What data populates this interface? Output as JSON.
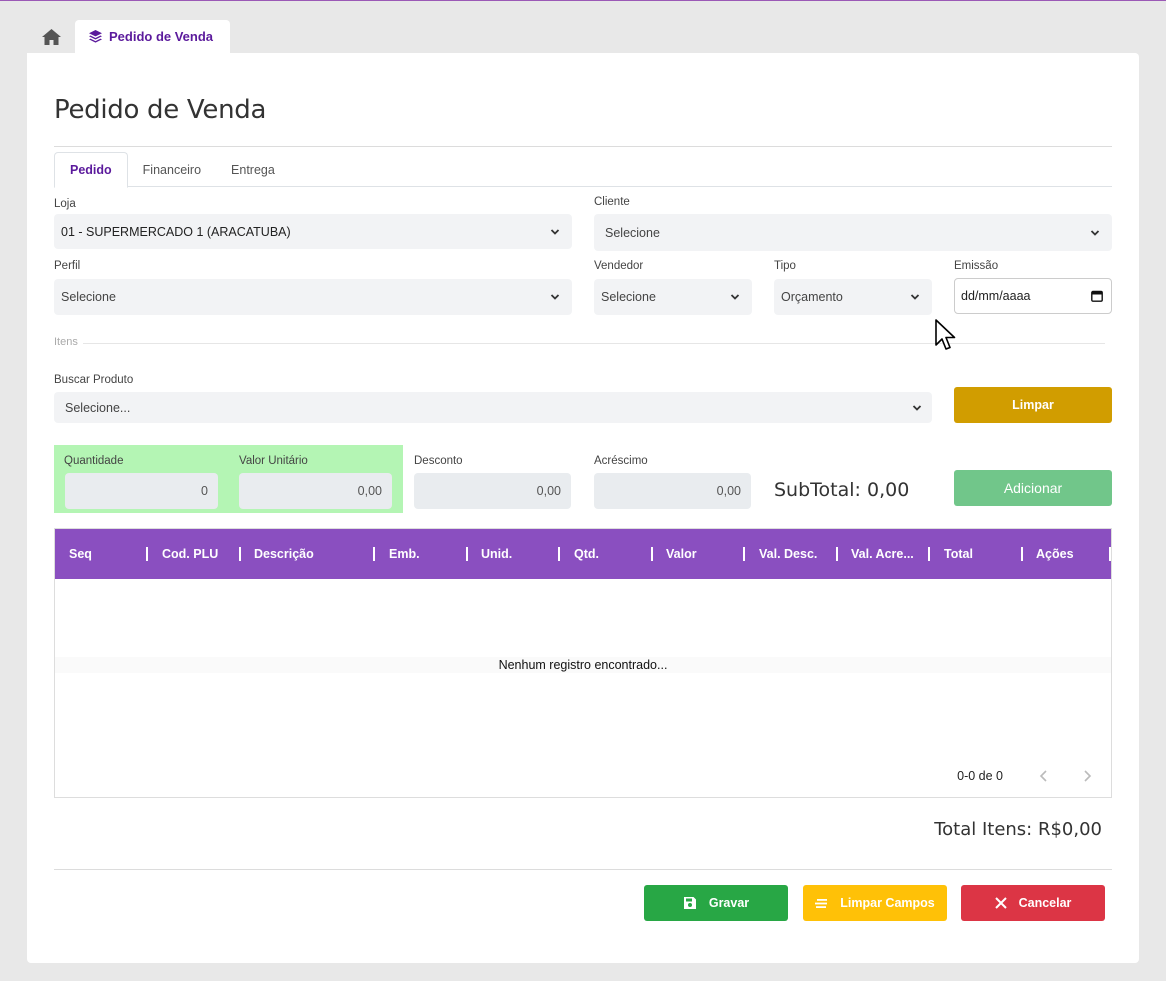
{
  "tabbar": {
    "home_icon": "home-icon",
    "page_tab_label": "Pedido de Venda",
    "page_tab_icon": "layers-icon"
  },
  "page": {
    "title": "Pedido de Venda"
  },
  "form_tabs": [
    {
      "label": "Pedido",
      "active": true
    },
    {
      "label": "Financeiro",
      "active": false
    },
    {
      "label": "Entrega",
      "active": false
    }
  ],
  "fields": {
    "loja": {
      "label": "Loja",
      "value": "01 - SUPERMERCADO 1 (ARACATUBA)"
    },
    "cliente": {
      "label": "Cliente",
      "value": "Selecione"
    },
    "perfil": {
      "label": "Perfil",
      "value": "Selecione"
    },
    "vendedor": {
      "label": "Vendedor",
      "value": "Selecione"
    },
    "tipo": {
      "label": "Tipo",
      "value": "Orçamento"
    },
    "emissao": {
      "label": "Emissão",
      "value": "dd/mm/aaaa"
    }
  },
  "itens": {
    "section_label": "Itens",
    "buscar_label": "Buscar Produto",
    "buscar_value": "Selecione...",
    "limpar_label": "Limpar",
    "quantidade_label": "Quantidade",
    "quantidade_value": "0",
    "valor_unitario_label": "Valor Unitário",
    "valor_unitario_value": "0,00",
    "desconto_label": "Desconto",
    "desconto_value": "0,00",
    "acrescimo_label": "Acréscimo",
    "acrescimo_value": "0,00",
    "subtotal_text": "SubTotal: 0,00",
    "adicionar_label": "Adicionar"
  },
  "table": {
    "columns": [
      "Seq",
      "Cod. PLU",
      "Descrição",
      "Emb.",
      "Unid.",
      "Qtd.",
      "Valor",
      "Val. Desc.",
      "Val. Acre...",
      "Total",
      "Ações"
    ],
    "empty_text": "Nenhum registro encontrado...",
    "pager_text": "0-0 de 0"
  },
  "totals": {
    "total_itens": "Total Itens: R$0,00"
  },
  "actions": {
    "gravar": "Gravar",
    "limpar_campos": "Limpar Campos",
    "cancelar": "Cancelar"
  },
  "colors": {
    "accent": "#5b1a9c",
    "table_header": "#8a4fc0",
    "limpar": "#d19d00",
    "adicionar": "#71c68a",
    "gravar": "#28a745",
    "limpar_campos": "#ffc107",
    "cancelar": "#dc3545",
    "highlight_green": "#b4f5b4"
  }
}
